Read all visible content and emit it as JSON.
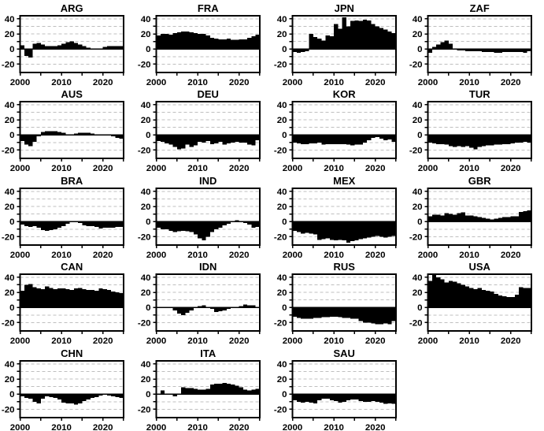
{
  "figure": {
    "background": "#ffffff",
    "description": "Grid of small-multiple bar charts by country code"
  },
  "chart_data": {
    "type": "bar",
    "title": "",
    "xlabel": "",
    "ylabel": "",
    "x_start": 2000,
    "x_end": 2025,
    "x_step": 1,
    "xlim": [
      2000,
      2025
    ],
    "ylim": [
      -31,
      44
    ],
    "xticks": [
      2000,
      2005,
      2010,
      2015,
      2020,
      2025
    ],
    "xtick_labels": [
      {
        "value": 2000,
        "label": "2000"
      },
      {
        "value": 2010,
        "label": "2010"
      },
      {
        "value": 2020,
        "label": "2020"
      }
    ],
    "yticks": [
      -20,
      -10,
      0,
      10,
      20,
      30,
      40
    ],
    "ytick_labels": [
      {
        "value": -20,
        "label": "-20"
      },
      {
        "value": 0,
        "label": "0"
      },
      {
        "value": 20,
        "label": "20"
      },
      {
        "value": 40,
        "label": "40"
      }
    ],
    "grid_y": [
      -20,
      -10,
      10,
      20,
      30,
      40
    ],
    "grid_on": true,
    "legend": "none",
    "layout": {
      "columns": 4,
      "rows": 5
    },
    "colors": {
      "bar": "#000000",
      "grid": "#bfbfbf",
      "axis": "#000000",
      "background": "#ffffff"
    },
    "series": [
      {
        "name": "ARG",
        "values": [
          5,
          -9,
          -11,
          7,
          8,
          6,
          4,
          4,
          4,
          5,
          7,
          9,
          10,
          8,
          6,
          4,
          2,
          1,
          0,
          1,
          3,
          4,
          4,
          4,
          4
        ]
      },
      {
        "name": "FRA",
        "values": [
          18,
          20,
          20,
          19,
          21,
          22,
          23,
          23,
          22,
          21,
          20,
          20,
          18,
          15,
          14,
          13,
          13,
          14,
          12,
          12,
          13,
          13,
          15,
          17,
          19
        ]
      },
      {
        "name": "JPN",
        "values": [
          -4,
          -5,
          -4,
          -3,
          20,
          16,
          14,
          11,
          18,
          17,
          33,
          27,
          42,
          30,
          37,
          38,
          37,
          39,
          38,
          33,
          30,
          28,
          26,
          23,
          21
        ]
      },
      {
        "name": "ZAF",
        "values": [
          -5,
          3,
          6,
          9,
          11,
          7,
          1,
          -2,
          -2,
          -3,
          -3,
          -3,
          -3,
          -4,
          -4,
          -4,
          -5,
          -5,
          -4,
          -4,
          -4,
          -4,
          -4,
          -5,
          -3
        ]
      },
      {
        "name": "AUS",
        "values": [
          -8,
          -13,
          -15,
          -9,
          -2,
          4,
          5,
          5,
          5,
          4,
          3,
          1,
          1,
          2,
          3,
          3,
          3,
          2,
          1,
          1,
          0,
          -1,
          -2,
          -4,
          -5
        ]
      },
      {
        "name": "DEU",
        "values": [
          -8,
          -9,
          -11,
          -13,
          -16,
          -19,
          -18,
          -13,
          -16,
          -14,
          -9,
          -10,
          -8,
          -12,
          -11,
          -9,
          -13,
          -11,
          -10,
          -9,
          -10,
          -10,
          -13,
          -14,
          -7
        ]
      },
      {
        "name": "KOR",
        "values": [
          -10,
          -11,
          -12,
          -12,
          -11,
          -11,
          -10,
          -13,
          -12,
          -12,
          -12,
          -12,
          -12,
          -13,
          -14,
          -13,
          -13,
          -10,
          -7,
          -4,
          -3,
          -5,
          -7,
          -6,
          -9
        ]
      },
      {
        "name": "TUR",
        "values": [
          -10,
          -11,
          -12,
          -12,
          -13,
          -15,
          -16,
          -15,
          -16,
          -15,
          -17,
          -19,
          -16,
          -15,
          -14,
          -14,
          -13,
          -13,
          -12,
          -12,
          -11,
          -10,
          -10,
          -9,
          -10
        ]
      },
      {
        "name": "BRA",
        "values": [
          -4,
          -6,
          -7,
          -6,
          -8,
          -11,
          -12,
          -11,
          -10,
          -8,
          -6,
          -3,
          0,
          1,
          -2,
          -5,
          -6,
          -6,
          -7,
          -9,
          -8,
          -8,
          -8,
          -7,
          -7
        ]
      },
      {
        "name": "IND",
        "values": [
          -8,
          -10,
          -10,
          -12,
          -14,
          -13,
          -12,
          -13,
          -14,
          -17,
          -22,
          -25,
          -20,
          -14,
          -10,
          -8,
          -5,
          -3,
          1,
          2,
          0,
          -2,
          -4,
          -8,
          -7
        ]
      },
      {
        "name": "MEX",
        "values": [
          -12,
          -14,
          -16,
          -15,
          -16,
          -17,
          -24,
          -23,
          -22,
          -24,
          -25,
          -24,
          -25,
          -28,
          -26,
          -25,
          -23,
          -22,
          -21,
          -20,
          -19,
          -20,
          -21,
          -20,
          -19
        ]
      },
      {
        "name": "GBR",
        "values": [
          7,
          9,
          9,
          8,
          11,
          10,
          9,
          11,
          12,
          8,
          8,
          7,
          6,
          5,
          4,
          3,
          4,
          5,
          6,
          6,
          7,
          7,
          13,
          14,
          15
        ]
      },
      {
        "name": "CAN",
        "values": [
          22,
          30,
          31,
          27,
          25,
          24,
          28,
          26,
          24,
          25,
          25,
          24,
          23,
          25,
          26,
          24,
          23,
          23,
          22,
          25,
          24,
          23,
          21,
          20,
          19
        ]
      },
      {
        "name": "IDN",
        "values": [
          1,
          1,
          1,
          0,
          -4,
          -8,
          -10,
          -7,
          -4,
          -1,
          2,
          3,
          1,
          -2,
          -6,
          -5,
          -4,
          -2,
          0,
          1,
          2,
          4,
          3,
          3,
          1
        ]
      },
      {
        "name": "RUS",
        "values": [
          -12,
          -14,
          -15,
          -15,
          -15,
          -14,
          -14,
          -13,
          -13,
          -12,
          -12,
          -13,
          -14,
          -14,
          -15,
          -15,
          -18,
          -20,
          -20,
          -21,
          -22,
          -22,
          -21,
          -22,
          -18
        ]
      },
      {
        "name": "USA",
        "values": [
          35,
          43,
          40,
          37,
          33,
          35,
          34,
          32,
          30,
          28,
          26,
          24,
          26,
          23,
          22,
          21,
          18,
          16,
          15,
          14,
          14,
          17,
          27,
          26,
          26
        ]
      },
      {
        "name": "CHN",
        "values": [
          -3,
          -5,
          -6,
          -10,
          -12,
          -6,
          -3,
          -4,
          -5,
          -7,
          -11,
          -12,
          -12,
          -14,
          -12,
          -9,
          -7,
          -5,
          -4,
          -2,
          -1,
          -2,
          -3,
          -4,
          -5
        ]
      },
      {
        "name": "ITA",
        "values": [
          1,
          5,
          1,
          -1,
          -3,
          -1,
          9,
          8,
          8,
          7,
          6,
          6,
          7,
          13,
          14,
          14,
          15,
          14,
          13,
          11,
          9,
          6,
          5,
          6,
          7
        ]
      },
      {
        "name": "SAU",
        "values": [
          -8,
          -10,
          -11,
          -10,
          -11,
          -12,
          -8,
          -6,
          -6,
          -8,
          -9,
          -11,
          -10,
          -8,
          -7,
          -7,
          -9,
          -10,
          -10,
          -9,
          -10,
          -11,
          -13,
          -12,
          -13
        ]
      }
    ]
  }
}
